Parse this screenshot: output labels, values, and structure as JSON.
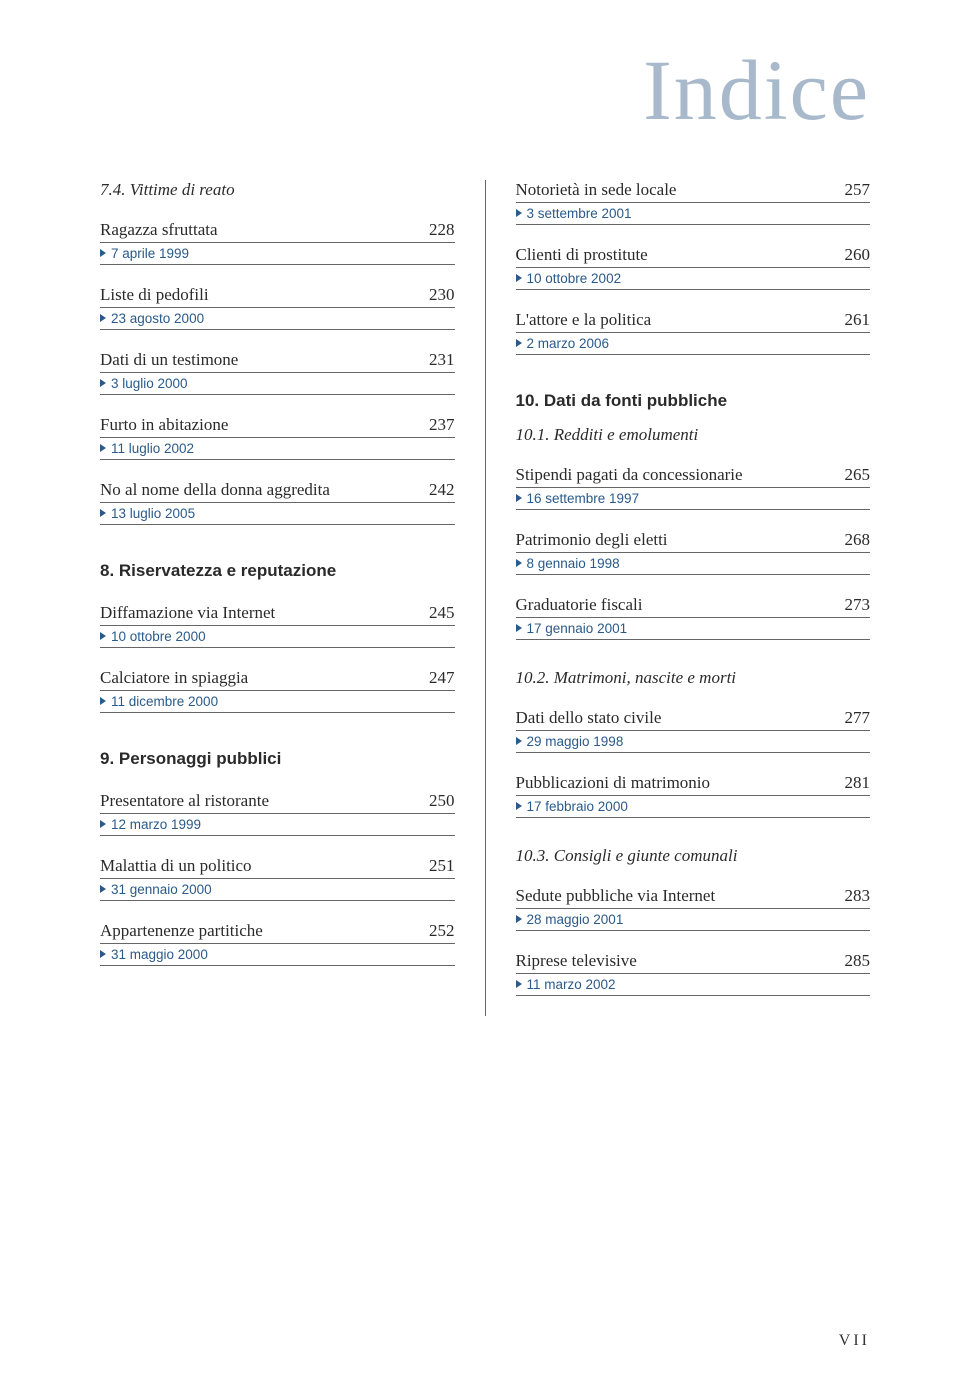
{
  "colors": {
    "title": "#a8b9cc",
    "text": "#2a2a2a",
    "date": "#2a5a8a",
    "rule": "#666666",
    "background": "#ffffff"
  },
  "typography": {
    "title_fontsize": 86,
    "body_fontsize": 17,
    "date_fontsize": 13.5,
    "pagenum_fontsize": 16
  },
  "page_title": "Indice",
  "page_number": "VII",
  "left": {
    "sub74": "7.4. Vittime di reato",
    "e1": {
      "t": "Ragazza sfruttata",
      "p": "228",
      "d": "7 aprile 1999"
    },
    "e2": {
      "t": "Liste di pedofili",
      "p": "230",
      "d": "23 agosto 2000"
    },
    "e3": {
      "t": "Dati di un testimone",
      "p": "231",
      "d": "3 luglio 2000"
    },
    "e4": {
      "t": "Furto in abitazione",
      "p": "237",
      "d": "11 luglio 2002"
    },
    "e5": {
      "t": "No al nome della donna aggredita",
      "p": "242",
      "d": "13 luglio 2005"
    },
    "sec8": "8.   Riservatezza e reputazione",
    "e6": {
      "t": "Diffamazione via Internet",
      "p": "245",
      "d": "10 ottobre 2000"
    },
    "e7": {
      "t": "Calciatore in spiaggia",
      "p": "247",
      "d": "11 dicembre 2000"
    },
    "sec9": "9.   Personaggi pubblici",
    "e8": {
      "t": "Presentatore al ristorante",
      "p": "250",
      "d": "12 marzo 1999"
    },
    "e9": {
      "t": "Malattia di un politico",
      "p": "251",
      "d": "31 gennaio 2000"
    },
    "e10": {
      "t": "Appartenenze partitiche",
      "p": "252",
      "d": "31 maggio 2000"
    }
  },
  "right": {
    "e1": {
      "t": "Notorietà in sede locale",
      "p": "257",
      "d": "3 settembre 2001"
    },
    "e2": {
      "t": "Clienti di prostitute",
      "p": "260",
      "d": "10 ottobre 2002"
    },
    "e3": {
      "t": "L'attore e la politica",
      "p": "261",
      "d": "2 marzo 2006"
    },
    "sec10": "10.  Dati da fonti pubbliche",
    "sub101": "10.1. Redditi e emolumenti",
    "e4": {
      "t": "Stipendi pagati da concessionarie",
      "p": "265",
      "d": "16 settembre 1997"
    },
    "e5": {
      "t": "Patrimonio degli eletti",
      "p": "268",
      "d": "8 gennaio 1998"
    },
    "e6": {
      "t": "Graduatorie fiscali",
      "p": "273",
      "d": "17 gennaio 2001"
    },
    "sub102": "10.2. Matrimoni, nascite e morti",
    "e7": {
      "t": "Dati dello stato civile",
      "p": "277",
      "d": "29 maggio 1998"
    },
    "e8": {
      "t": "Pubblicazioni di matrimonio",
      "p": "281",
      "d": "17 febbraio 2000"
    },
    "sub103": "10.3. Consigli e giunte comunali",
    "e9": {
      "t": "Sedute pubbliche via Internet",
      "p": "283",
      "d": "28 maggio 2001"
    },
    "e10": {
      "t": "Riprese televisive",
      "p": "285",
      "d": "11 marzo 2002"
    }
  }
}
